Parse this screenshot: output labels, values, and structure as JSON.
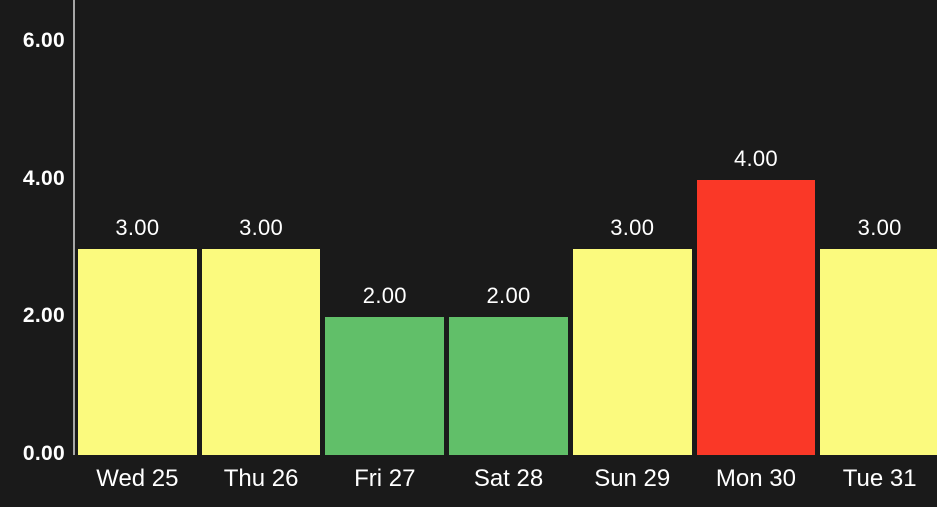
{
  "chart": {
    "background_color": "#1a1a1a",
    "axis_line_color": "#a6a6a6",
    "text_color": "#ffffff"
  },
  "chart_data": {
    "type": "bar",
    "title": "",
    "xlabel": "",
    "ylabel": "",
    "categories": [
      "Wed 25",
      "Thu 26",
      "Fri 27",
      "Sat 28",
      "Sun 29",
      "Mon 30",
      "Tue 31"
    ],
    "values": [
      3.0,
      3.0,
      2.0,
      2.0,
      3.0,
      4.0,
      3.0
    ],
    "value_labels": [
      "3.00",
      "3.00",
      "2.00",
      "2.00",
      "3.00",
      "4.00",
      "3.00"
    ],
    "bar_colors": [
      "#fbfa7e",
      "#fbfa7e",
      "#61bf69",
      "#61bf69",
      "#fbfa7e",
      "#fa3827",
      "#fbfa7e"
    ],
    "bar_color_names": [
      "yellow",
      "yellow",
      "green",
      "green",
      "yellow",
      "red",
      "yellow"
    ],
    "ylim": [
      0,
      6.6
    ],
    "y_ticks": [
      {
        "value": 0,
        "label": "0.00"
      },
      {
        "value": 2,
        "label": "2.00"
      },
      {
        "value": 4,
        "label": "4.00"
      },
      {
        "value": 6,
        "label": "6.00"
      }
    ],
    "grid": false,
    "legend": false
  }
}
